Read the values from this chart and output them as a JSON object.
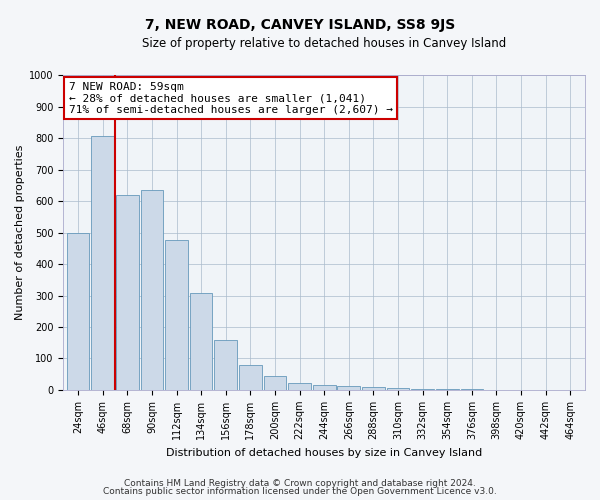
{
  "title": "7, NEW ROAD, CANVEY ISLAND, SS8 9JS",
  "subtitle": "Size of property relative to detached houses in Canvey Island",
  "xlabel": "Distribution of detached houses by size in Canvey Island",
  "ylabel": "Number of detached properties",
  "footnote1": "Contains HM Land Registry data © Crown copyright and database right 2024.",
  "footnote2": "Contains public sector information licensed under the Open Government Licence v3.0.",
  "annotation_title": "7 NEW ROAD: 59sqm",
  "annotation_line1": "← 28% of detached houses are smaller (1,041)",
  "annotation_line2": "71% of semi-detached houses are larger (2,607) →",
  "bar_heights": [
    500,
    808,
    620,
    635,
    478,
    307,
    160,
    78,
    43,
    22,
    17,
    12,
    10,
    5,
    3,
    2,
    2,
    1,
    1,
    1,
    0
  ],
  "bar_labels": [
    "24sqm",
    "46sqm",
    "68sqm",
    "90sqm",
    "112sqm",
    "134sqm",
    "156sqm",
    "178sqm",
    "200sqm",
    "222sqm",
    "244sqm",
    "266sqm",
    "288sqm",
    "310sqm",
    "332sqm",
    "354sqm",
    "376sqm",
    "398sqm",
    "420sqm",
    "442sqm",
    "464sqm"
  ],
  "bar_color": "#ccd9e8",
  "bar_edge_color": "#6699bb",
  "vline_color": "#cc0000",
  "vline_x": 1.5,
  "ylim": [
    0,
    1000
  ],
  "yticks": [
    0,
    100,
    200,
    300,
    400,
    500,
    600,
    700,
    800,
    900,
    1000
  ],
  "annotation_box_facecolor": "#ffffff",
  "annotation_box_edgecolor": "#cc0000",
  "bg_color": "#f4f6f9",
  "plot_bg_color": "#f0f4f8",
  "grid_color": "#aabbcc",
  "title_fontsize": 10,
  "subtitle_fontsize": 8.5,
  "xlabel_fontsize": 8,
  "ylabel_fontsize": 8,
  "tick_fontsize": 7,
  "annotation_fontsize": 8,
  "footnote_fontsize": 6.5
}
